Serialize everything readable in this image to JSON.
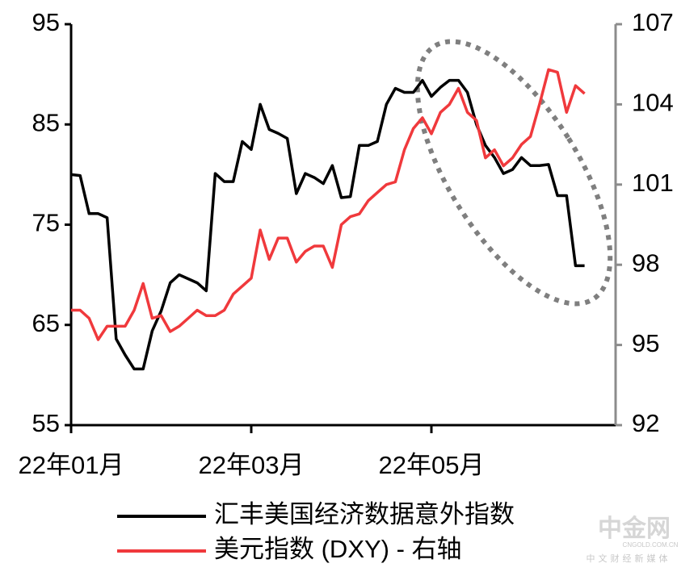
{
  "chart_data": {
    "type": "line",
    "categories": [
      "22年01月",
      null,
      null,
      null,
      null,
      null,
      null,
      null,
      null,
      null,
      null,
      null,
      null,
      null,
      null,
      null,
      null,
      null,
      null,
      null,
      "22年03月",
      null,
      null,
      null,
      null,
      null,
      null,
      null,
      null,
      null,
      null,
      null,
      null,
      null,
      null,
      null,
      null,
      null,
      null,
      null,
      "22年05月",
      null,
      null,
      null,
      null,
      null,
      null,
      null,
      null,
      null,
      null,
      null,
      null,
      null,
      null,
      null,
      null,
      null
    ],
    "series": [
      {
        "name": "汇丰美国经济数据意外指数",
        "color": "#000000",
        "axis": "y",
        "values": [
          80.0,
          79.9,
          76.1,
          76.1,
          75.7,
          63.6,
          62.0,
          60.6,
          60.6,
          64.4,
          66.4,
          69.2,
          70.0,
          69.6,
          69.2,
          68.4,
          80.1,
          79.3,
          79.3,
          83.3,
          82.5,
          87.0,
          84.5,
          84.1,
          83.6,
          78.1,
          80.1,
          79.7,
          79.1,
          80.9,
          77.7,
          77.8,
          82.9,
          82.9,
          83.3,
          87.0,
          88.6,
          88.2,
          88.2,
          89.4,
          87.8,
          88.7,
          89.4,
          89.4,
          88.2,
          85.0,
          82.9,
          81.7,
          80.1,
          80.5,
          81.7,
          80.9,
          80.9,
          81.0,
          77.9,
          77.9,
          70.9,
          70.9
        ]
      },
      {
        "name": "美元指数 (DXY) - 右轴",
        "color": "#f0393c",
        "axis": "y2",
        "values": [
          96.3,
          96.3,
          96.0,
          95.2,
          95.7,
          95.7,
          95.7,
          96.3,
          97.3,
          96.0,
          96.1,
          95.5,
          95.7,
          96.0,
          96.3,
          96.1,
          96.1,
          96.3,
          96.9,
          97.2,
          97.5,
          99.3,
          98.2,
          99.0,
          99.0,
          98.1,
          98.5,
          98.7,
          98.7,
          97.9,
          99.5,
          99.8,
          99.9,
          100.4,
          100.7,
          101.0,
          101.1,
          102.3,
          103.1,
          103.5,
          102.9,
          103.7,
          104.0,
          104.6,
          103.7,
          103.4,
          102.0,
          102.3,
          101.7,
          102.0,
          102.5,
          102.8,
          104.0,
          105.3,
          105.2,
          103.7,
          104.7,
          104.4
        ]
      }
    ],
    "ylim": [
      55,
      95
    ],
    "yticks": [
      55,
      65,
      75,
      85,
      95
    ],
    "y2lim": [
      92,
      107
    ],
    "y2ticks": [
      92,
      95,
      98,
      101,
      104,
      107
    ],
    "grid": false,
    "legend": "bottom"
  },
  "watermark": {
    "name": "中金网",
    "site": "CNGOLD.COM.CN",
    "slogan": "中文财经新媒体"
  }
}
